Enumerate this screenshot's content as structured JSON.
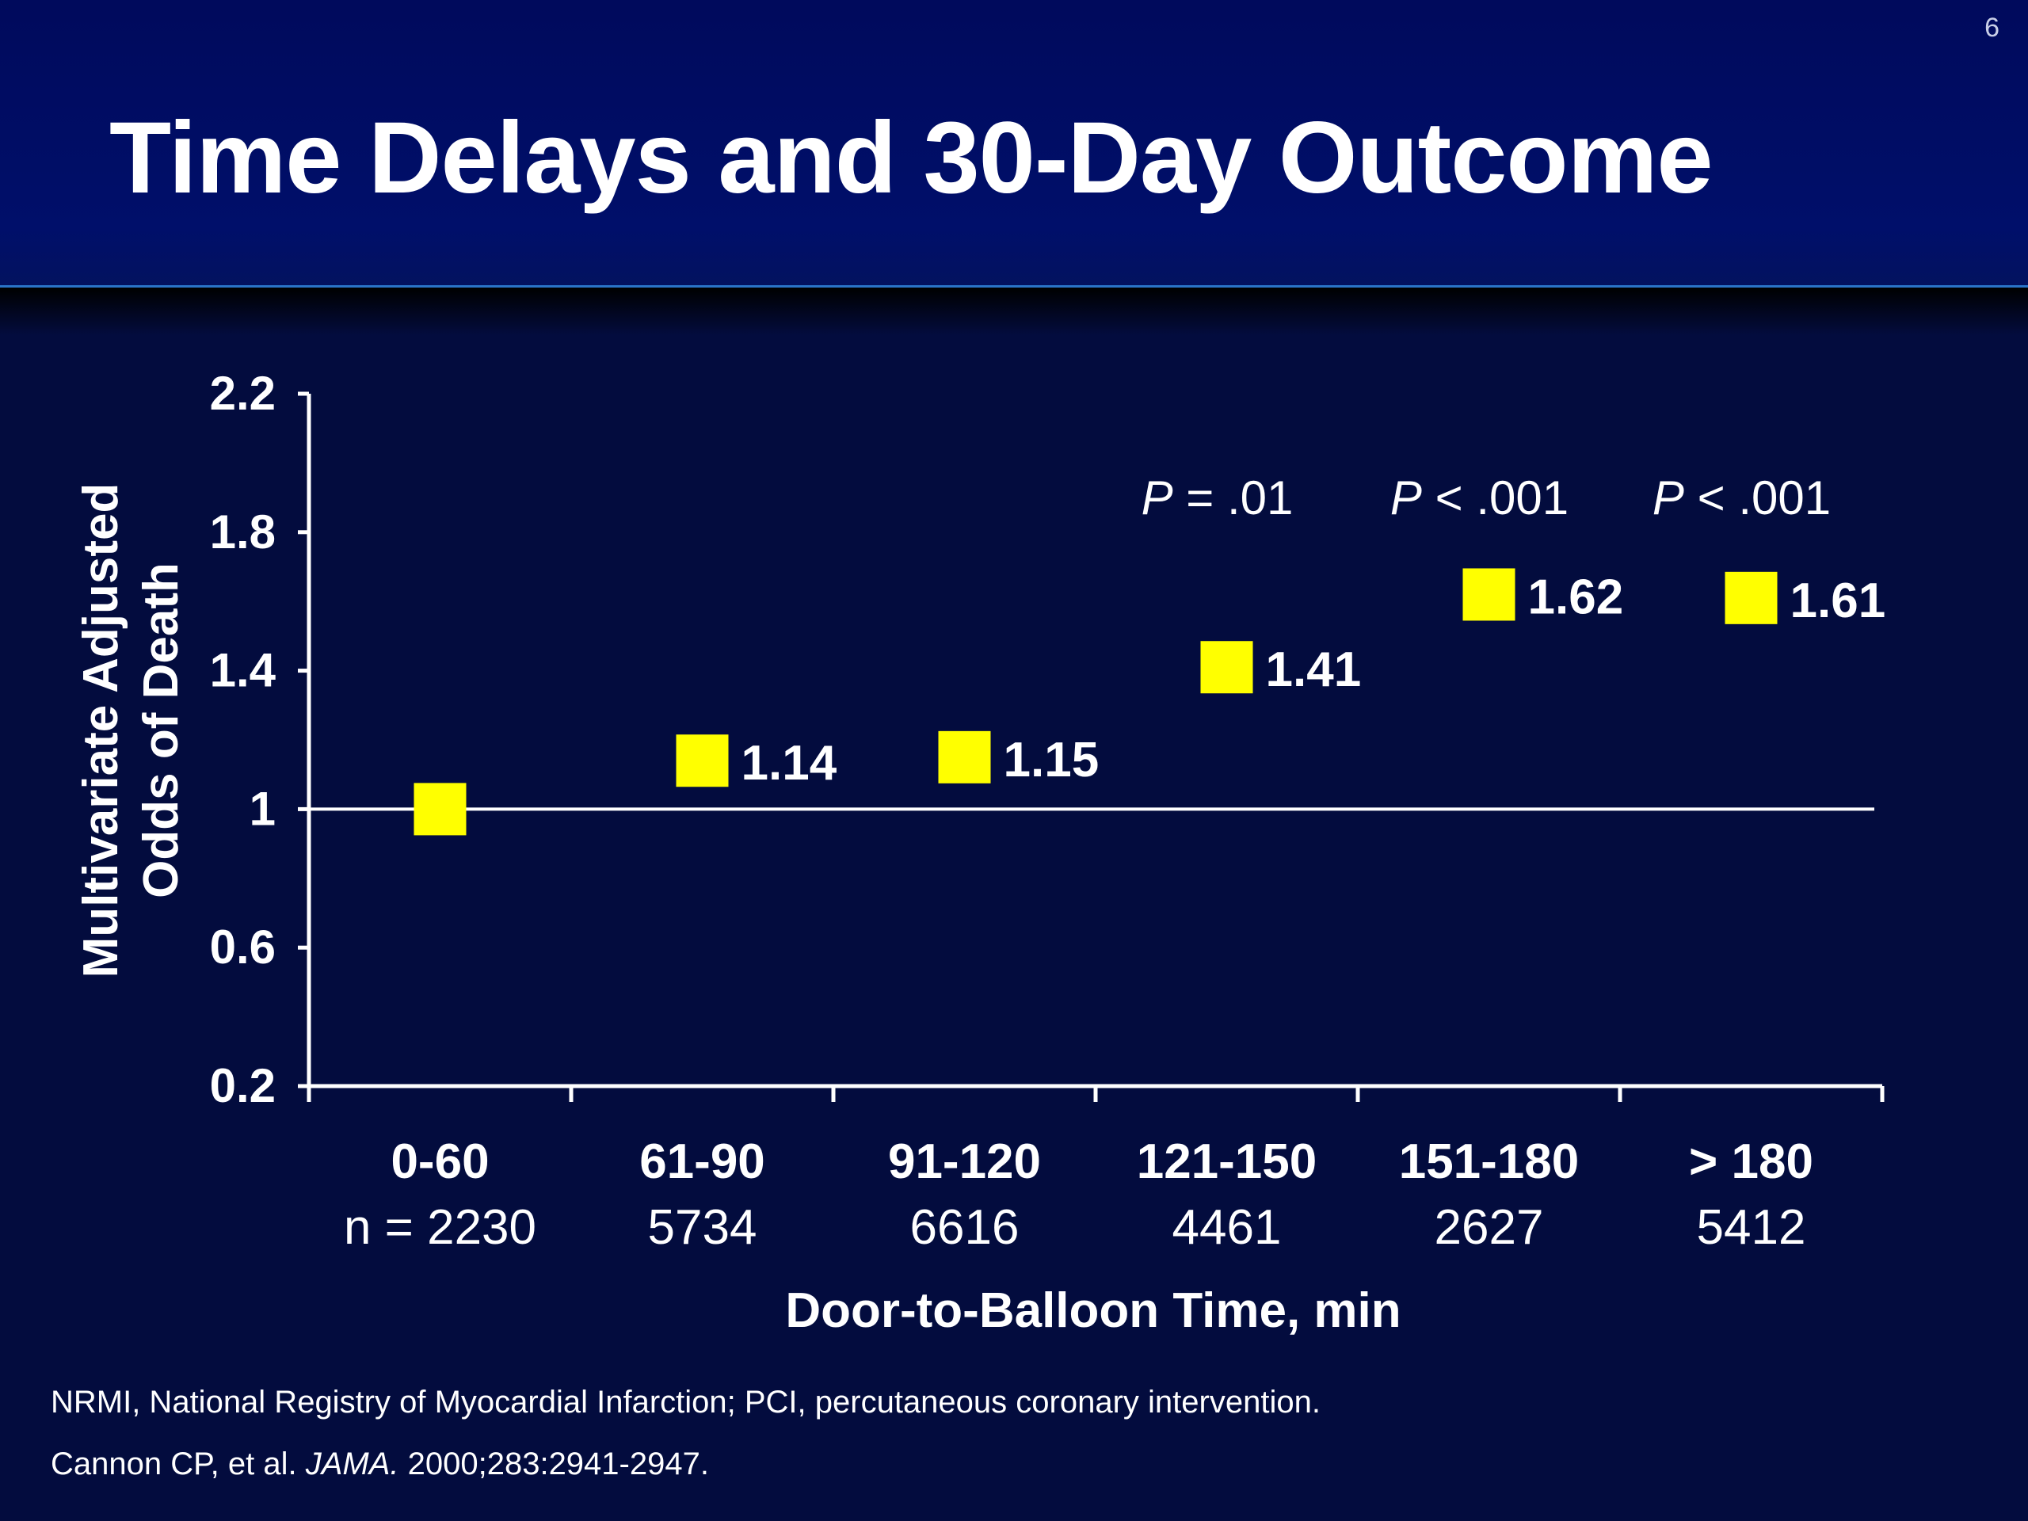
{
  "slide": {
    "number": "6",
    "title": "Time Delays and 30-Day Outcome"
  },
  "colors": {
    "background": "#030c3e",
    "header": "#000f6a",
    "marker": "#ffff00",
    "axis": "#ffffff"
  },
  "chart_data": {
    "type": "scatter",
    "xlabel": "Door-to-Balloon Time, min",
    "ylabel_lines": [
      "Multivariate Adjusted",
      "Odds of Death"
    ],
    "ylim": [
      0.2,
      2.2
    ],
    "yticks": [
      "2.2",
      "1.8",
      "1.4",
      "1",
      "0.6",
      "0.2"
    ],
    "reference_line": 1,
    "grid": false,
    "categories": [
      "0-60",
      "61-90",
      "91-120",
      "121-150",
      "151-180",
      "> 180"
    ],
    "sample_sizes": [
      "n = 2230",
      "5734",
      "6616",
      "4461",
      "2627",
      "5412"
    ],
    "values": [
      1.0,
      1.14,
      1.15,
      1.41,
      1.62,
      1.61
    ],
    "value_labels": [
      "",
      "1.14",
      "1.15",
      "1.41",
      "1.62",
      "1.61"
    ],
    "p_values": [
      {
        "category": "121-150",
        "label": "P",
        "rest": " = .01"
      },
      {
        "category": "151-180",
        "label": "P",
        "rest": " < .001"
      },
      {
        "category": "> 180",
        "label": "P",
        "rest": " < .001"
      }
    ]
  },
  "footnotes": {
    "line1": "NRMI, National Registry of Myocardial Infarction; PCI, percutaneous coronary intervention.",
    "line2_pre": "Cannon CP, et al. ",
    "line2_journal": "JAMA.",
    "line2_post": " 2000;283:2941-2947."
  }
}
